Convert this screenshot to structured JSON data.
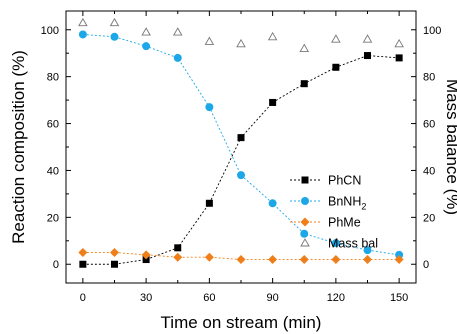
{
  "chart_data": {
    "type": "scatter",
    "xlabel": "Time on stream (min)",
    "ylabel": "Reaction composition (%)",
    "y2label": "Mass balance (%)",
    "xlim": [
      -8,
      158
    ],
    "ylim": [
      -8,
      108
    ],
    "y2lim": [
      -8,
      108
    ],
    "xticks": [
      0,
      30,
      60,
      90,
      120,
      150
    ],
    "yticks": [
      0,
      20,
      40,
      60,
      80,
      100
    ],
    "y2ticks": [
      0,
      20,
      40,
      60,
      80,
      100
    ],
    "grid": false,
    "legend_position": "right",
    "x": [
      0,
      15,
      30,
      45,
      60,
      75,
      90,
      105,
      120,
      135,
      150
    ],
    "series": [
      {
        "name": "PhCN",
        "legend_main": "PhCN",
        "legend_sub": "",
        "color": "#000000",
        "marker": "square",
        "connected": true,
        "axis": "left",
        "values": [
          0,
          0,
          2,
          7,
          26,
          54,
          69,
          77,
          84,
          89,
          88
        ]
      },
      {
        "name": "BnNH2",
        "legend_main": "BnNH",
        "legend_sub": "2",
        "color": "#1ca8e8",
        "marker": "circle",
        "connected": true,
        "axis": "left",
        "values": [
          98,
          97,
          93,
          88,
          67,
          38,
          26,
          13,
          9,
          6,
          4
        ]
      },
      {
        "name": "PhMe",
        "legend_main": "PhMe",
        "legend_sub": "",
        "color": "#f07f1a",
        "marker": "diamond",
        "connected": true,
        "axis": "left",
        "values": [
          5,
          5,
          4,
          3,
          3,
          2,
          2,
          2,
          2,
          2,
          2
        ]
      },
      {
        "name": "Mass bal",
        "legend_main": "Mass bal",
        "legend_sub": "",
        "color": "#777777",
        "marker": "triangle-open",
        "connected": false,
        "axis": "right",
        "values": [
          103,
          103,
          99,
          99,
          95,
          94,
          97,
          92,
          96,
          96,
          94
        ]
      }
    ]
  }
}
